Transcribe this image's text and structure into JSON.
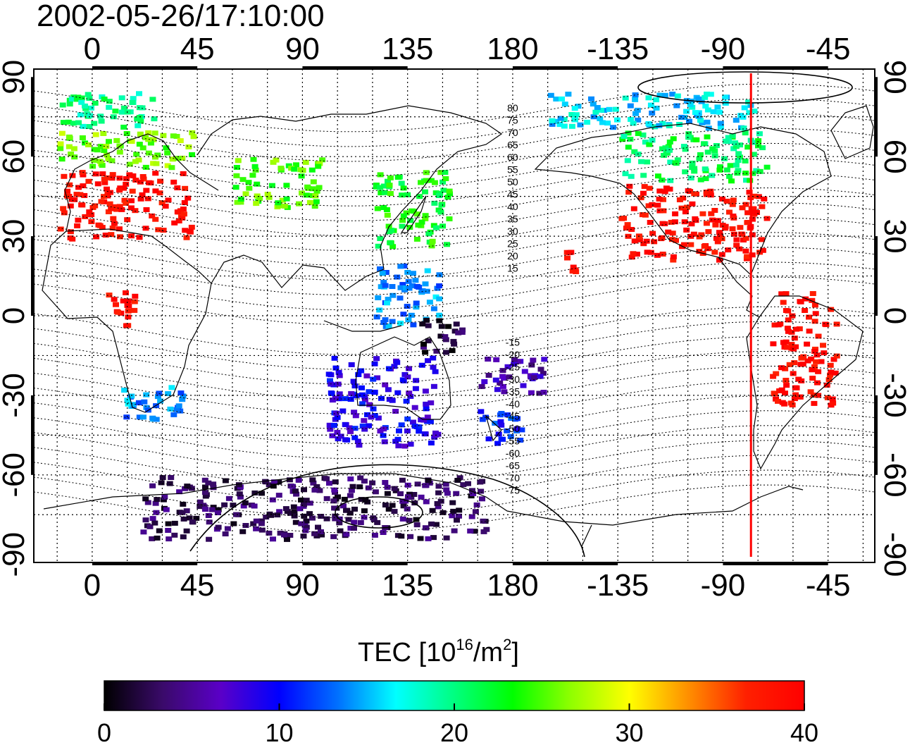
{
  "title": "2002-05-26/17:10:00",
  "map": {
    "top_lon_ticks": [
      "0",
      "45",
      "90",
      "135",
      "180",
      "-135",
      "-90",
      "-45"
    ],
    "bottom_lon_ticks": [
      "0",
      "45",
      "90",
      "135",
      "180",
      "-135",
      "-90",
      "-45"
    ],
    "left_lat_ticks": [
      "90",
      "60",
      "30",
      "0",
      "-30",
      "-60",
      "-90"
    ],
    "right_lat_ticks": [
      "90",
      "60",
      "30",
      "0",
      "-30",
      "-60",
      "-90"
    ],
    "lon_tick_values": [
      0,
      45,
      90,
      135,
      180,
      225,
      270,
      315
    ],
    "lat_tick_values": [
      90,
      60,
      30,
      0,
      -30,
      -60,
      -90
    ],
    "lon_range": [
      -25,
      335
    ],
    "lat_range": [
      -93,
      93
    ],
    "grid": "dotted every 15 degrees",
    "meridian_marker_lon": 282,
    "meridian_marker_color": "#ff0000",
    "contour_labels_north": [
      "80",
      "75",
      "70",
      "65",
      "60",
      "55",
      "50",
      "45",
      "40",
      "35",
      "30",
      "25",
      "20",
      "15"
    ],
    "contour_labels_south": [
      "-15",
      "-20",
      "-25",
      "-30",
      "-35",
      "-40",
      "-45",
      "-50",
      "-55",
      "-60",
      "-65",
      "-70",
      "-75"
    ]
  },
  "colorbar": {
    "label_text": "TEC  [10",
    "label_exp1": "16",
    "label_mid": "/m",
    "label_exp2": "2",
    "label_end": "]",
    "ticks": [
      "0",
      "10",
      "20",
      "30",
      "40"
    ],
    "tick_values": [
      0,
      10,
      20,
      30,
      40
    ],
    "range": [
      0,
      40
    ],
    "colors": [
      "#000000",
      "#3a0a6a",
      "#5a00c8",
      "#0000ff",
      "#0070ff",
      "#00ffff",
      "#00ff80",
      "#00ff00",
      "#90ff00",
      "#ffff00",
      "#ff9000",
      "#ff2000",
      "#ff0000"
    ]
  },
  "tec_regions": [
    {
      "lon_range": [
        -15,
        45
      ],
      "lat_range": [
        28,
        55
      ],
      "tec": 39
    },
    {
      "lon_range": [
        -15,
        45
      ],
      "lat_range": [
        55,
        70
      ],
      "tec": 26
    },
    {
      "lon_range": [
        -15,
        30
      ],
      "lat_range": [
        70,
        85
      ],
      "tec": 20
    },
    {
      "lon_range": [
        60,
        100
      ],
      "lat_range": [
        40,
        60
      ],
      "tec": 25
    },
    {
      "lon_range": [
        120,
        155
      ],
      "lat_range": [
        25,
        55
      ],
      "tec": 23
    },
    {
      "lon_range": [
        120,
        150
      ],
      "lat_range": [
        -5,
        20
      ],
      "tec": 14
    },
    {
      "lon_range": [
        140,
        160
      ],
      "lat_range": [
        -15,
        0
      ],
      "tec": 2
    },
    {
      "lon_range": [
        100,
        150
      ],
      "lat_range": [
        -50,
        -15
      ],
      "tec": 9
    },
    {
      "lon_range": [
        165,
        195
      ],
      "lat_range": [
        -30,
        -15
      ],
      "tec": 6
    },
    {
      "lon_range": [
        165,
        185
      ],
      "lat_range": [
        -50,
        -35
      ],
      "tec": 11
    },
    {
      "lon_range": [
        10,
        40
      ],
      "lat_range": [
        -40,
        -25
      ],
      "tec": 14
    },
    {
      "lon_range": [
        5,
        20
      ],
      "lat_range": [
        -5,
        10
      ],
      "tec": 39
    },
    {
      "lon_range": [
        225,
        290
      ],
      "lat_range": [
        20,
        50
      ],
      "tec": 39
    },
    {
      "lon_range": [
        225,
        290
      ],
      "lat_range": [
        50,
        70
      ],
      "tec": 21
    },
    {
      "lon_range": [
        195,
        285
      ],
      "lat_range": [
        70,
        85
      ],
      "tec": 16
    },
    {
      "lon_range": [
        290,
        320
      ],
      "lat_range": [
        -35,
        10
      ],
      "tec": 39
    },
    {
      "lon_range": [
        200,
        210
      ],
      "lat_range": [
        15,
        25
      ],
      "tec": 39
    },
    {
      "lon_range": [
        20,
        170
      ],
      "lat_range": [
        -85,
        -60
      ],
      "tec": 3
    }
  ]
}
